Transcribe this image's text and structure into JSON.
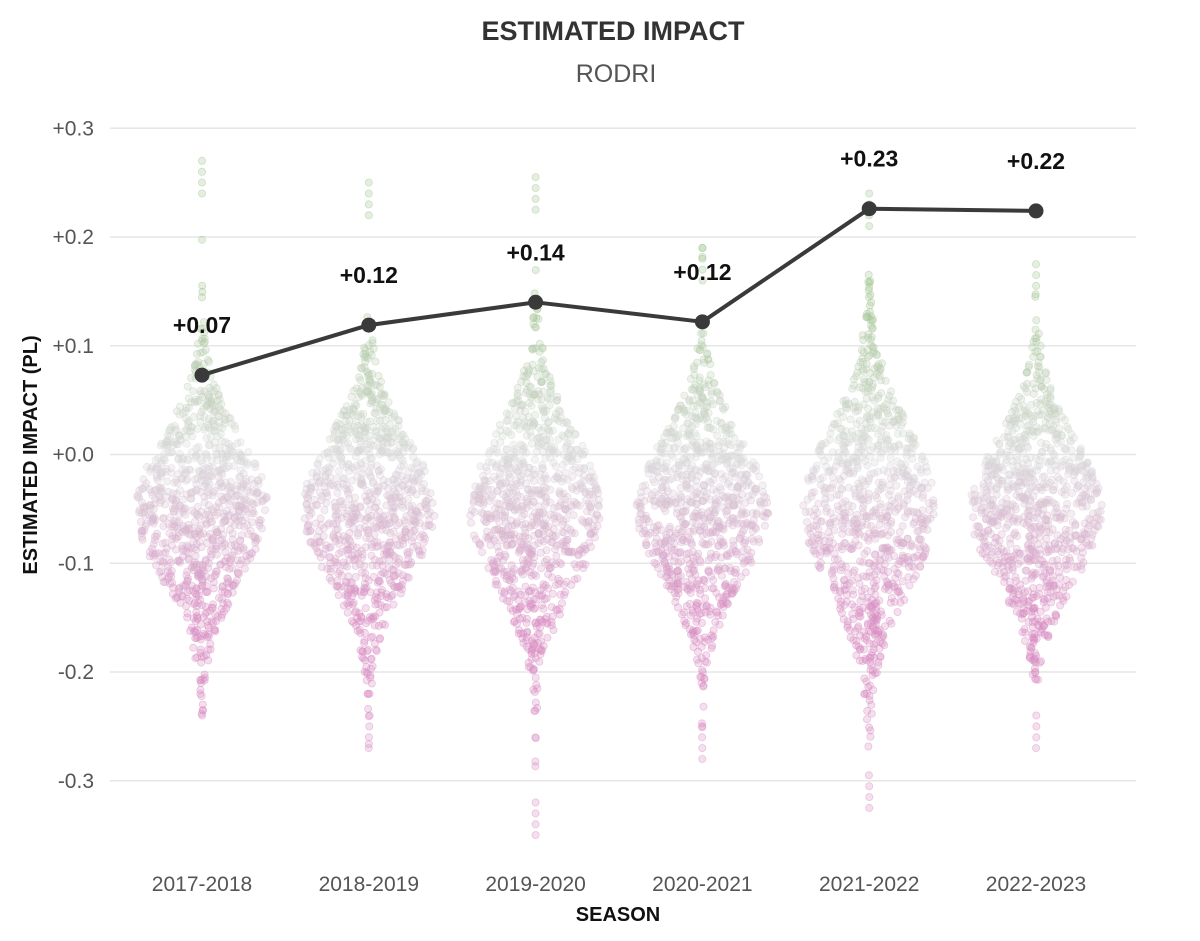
{
  "chart_data": {
    "type": "scatter",
    "title": "ESTIMATED IMPACT",
    "subtitle": "RODRI",
    "xlabel": "SEASON",
    "ylabel": "ESTIMATED IMPACT (PL)",
    "ylim": [
      -0.35,
      0.3
    ],
    "yticks": [
      0.3,
      0.2,
      0.1,
      0.0,
      -0.1,
      -0.2,
      -0.3
    ],
    "ytick_labels": [
      "+0.3",
      "+0.2",
      "+0.1",
      "+0.0",
      "-0.1",
      "-0.2",
      "-0.3"
    ],
    "grid": true,
    "categories": [
      "2017-2018",
      "2018-2019",
      "2019-2020",
      "2020-2021",
      "2021-2022",
      "2022-2023"
    ],
    "series": [
      {
        "name": "Estimated impact (mean)",
        "type": "line",
        "values": [
          0.073,
          0.119,
          0.14,
          0.122,
          0.226,
          0.224
        ],
        "labels": [
          "+0.07",
          "+0.12",
          "+0.14",
          "+0.12",
          "+0.23",
          "+0.22"
        ],
        "color": "#3a3a3a"
      }
    ],
    "distributions": [
      {
        "season": "2017-2018",
        "center": -0.05,
        "spread": 0.065,
        "min": -0.24,
        "max": 0.27
      },
      {
        "season": "2018-2019",
        "center": -0.05,
        "spread": 0.065,
        "min": -0.27,
        "max": 0.25
      },
      {
        "season": "2019-2020",
        "center": -0.05,
        "spread": 0.07,
        "min": -0.35,
        "max": 0.255
      },
      {
        "season": "2020-2021",
        "center": -0.05,
        "spread": 0.065,
        "min": -0.28,
        "max": 0.19
      },
      {
        "season": "2021-2022",
        "center": -0.05,
        "spread": 0.075,
        "min": -0.325,
        "max": 0.24
      },
      {
        "season": "2022-2023",
        "center": -0.05,
        "spread": 0.065,
        "min": -0.27,
        "max": 0.175
      }
    ],
    "colors": {
      "positive": "#9fc48e",
      "neutral": "#d9d9d9",
      "negative": "#d98cc2",
      "line": "#3a3a3a"
    }
  }
}
